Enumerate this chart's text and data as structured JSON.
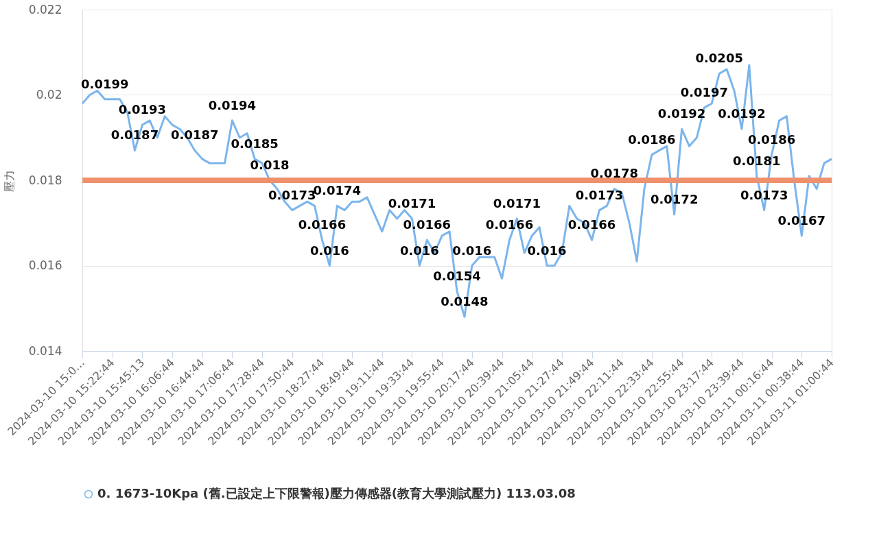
{
  "chart_data": {
    "type": "line",
    "ylabel": "壓力",
    "categories": [
      "2024-03-10 15:0…",
      null,
      null,
      null,
      "2024-03-10 15:22:44",
      null,
      null,
      null,
      "2024-03-10 15:45:13",
      null,
      null,
      null,
      "2024-03-10 16:06:44",
      null,
      null,
      null,
      "2024-03-10 16:44:44",
      null,
      null,
      null,
      "2024-03-10 17:06:44",
      null,
      null,
      null,
      "2024-03-10 17:28:44",
      null,
      null,
      null,
      "2024-03-10 17:50:44",
      null,
      null,
      null,
      "2024-03-10 18:27:44",
      null,
      null,
      null,
      "2024-03-10 18:49:44",
      null,
      null,
      null,
      "2024-03-10 19:11:44",
      null,
      null,
      null,
      "2024-03-10 19:33:44",
      null,
      null,
      null,
      "2024-03-10 19:55:44",
      null,
      null,
      null,
      "2024-03-10 20:17:44",
      null,
      null,
      null,
      "2024-03-10 20:39:44",
      null,
      null,
      null,
      "2024-03-10 21:05:44",
      null,
      null,
      null,
      "2024-03-10 21:27:44",
      null,
      null,
      null,
      "2024-03-10 21:49:44",
      null,
      null,
      null,
      "2024-03-10 22:11:44",
      null,
      null,
      null,
      "2024-03-10 22:33:44",
      null,
      null,
      null,
      "2024-03-10 22:55:44",
      null,
      null,
      null,
      "2024-03-10 23:17:44",
      null,
      null,
      null,
      "2024-03-10 23:39:44",
      null,
      null,
      null,
      "2024-03-11 00:16:44",
      null,
      null,
      null,
      "2024-03-11 00:38:44",
      null,
      null,
      null,
      "2024-03-11 01:00:44"
    ],
    "series": [
      {
        "name": "0. 1673-10Kpa (舊.已設定上下限警報)壓力傳感器(教育大學測試壓力) 113.03.08",
        "color": "#7cb5ec",
        "values": [
          0.0198,
          0.02,
          0.0201,
          0.0199,
          0.0199,
          0.0199,
          0.0196,
          0.0187,
          0.0193,
          0.0194,
          0.019,
          0.0195,
          0.0193,
          0.0192,
          0.019,
          0.0187,
          0.0185,
          0.0184,
          0.0184,
          0.0184,
          0.0194,
          0.019,
          0.0191,
          0.0185,
          0.0184,
          0.018,
          0.0178,
          0.0175,
          0.0173,
          0.0174,
          0.0175,
          0.0174,
          0.0166,
          0.016,
          0.0174,
          0.0173,
          0.0175,
          0.0175,
          0.0176,
          0.0172,
          0.0168,
          0.0173,
          0.0171,
          0.0173,
          0.0171,
          0.016,
          0.0166,
          0.0163,
          0.0167,
          0.0168,
          0.0154,
          0.0148,
          0.016,
          0.0162,
          0.0162,
          0.0162,
          0.0157,
          0.0166,
          0.0171,
          0.0163,
          0.0167,
          0.0169,
          0.016,
          0.016,
          0.0163,
          0.0174,
          0.0171,
          0.017,
          0.0166,
          0.0173,
          0.0174,
          0.0178,
          0.0177,
          0.017,
          0.0161,
          0.0178,
          0.0186,
          0.0187,
          0.0188,
          0.0172,
          0.0192,
          0.0188,
          0.019,
          0.0197,
          0.0198,
          0.0205,
          0.0206,
          0.0201,
          0.0192,
          0.0207,
          0.0181,
          0.0173,
          0.0186,
          0.0194,
          0.0195,
          0.018,
          0.0167,
          0.0181,
          0.0178,
          0.0184,
          0.0185
        ],
        "value_labels": [
          null,
          null,
          null,
          "0.0199",
          null,
          null,
          null,
          "0.0187",
          "0.0193",
          null,
          null,
          null,
          null,
          null,
          null,
          "0.0187",
          null,
          null,
          null,
          null,
          "0.0194",
          null,
          null,
          "0.0185",
          null,
          "0.018",
          null,
          null,
          "0.0173",
          null,
          null,
          null,
          "0.0166",
          "0.016",
          "0.0174",
          null,
          null,
          null,
          null,
          null,
          null,
          null,
          null,
          null,
          "0.0171",
          "0.016",
          "0.0166",
          null,
          null,
          null,
          "0.0154",
          "0.0148",
          "0.016",
          null,
          null,
          null,
          null,
          "0.0166",
          "0.0171",
          null,
          null,
          null,
          "0.016",
          null,
          null,
          null,
          null,
          null,
          "0.0166",
          "0.0173",
          null,
          "0.0178",
          null,
          null,
          null,
          null,
          "0.0186",
          null,
          null,
          "0.0172",
          "0.0192",
          null,
          null,
          "0.0197",
          null,
          "0.0205",
          null,
          null,
          "0.0192",
          null,
          "0.0181",
          "0.0173",
          "0.0186",
          null,
          null,
          null,
          "0.0167",
          null,
          null,
          null,
          null
        ]
      }
    ],
    "ylim": [
      0.014,
      0.022
    ],
    "yticks": [
      0.014,
      0.016,
      0.018,
      0.02,
      0.022
    ],
    "grid": "y",
    "legend": "bottom",
    "ref_lines": [
      {
        "axis": "y",
        "value": 0.018,
        "color": "#f0916e"
      }
    ]
  }
}
